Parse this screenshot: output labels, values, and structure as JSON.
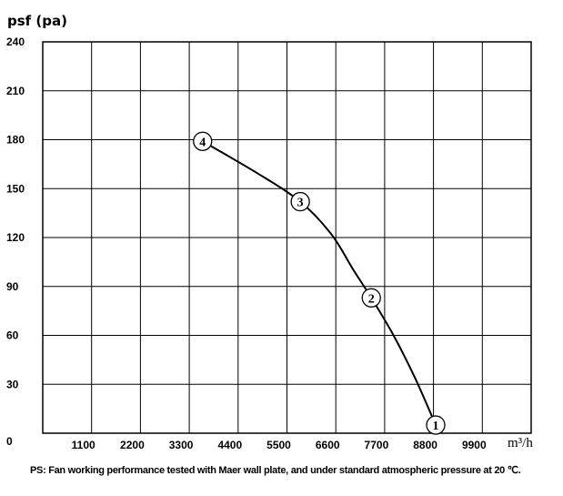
{
  "chart_data": {
    "type": "line",
    "title": "",
    "ylabel": "psf (pa)",
    "xlabel": "m³/h",
    "xlim": [
      0,
      11000
    ],
    "ylim": [
      0,
      240
    ],
    "xticks": [
      1100,
      2200,
      3300,
      4400,
      5500,
      6600,
      7700,
      8800,
      9900
    ],
    "yticks": [
      0,
      30,
      60,
      90,
      120,
      150,
      180,
      210,
      240
    ],
    "xtick_labels": [
      "1100",
      "2200",
      "3300",
      "4400",
      "5500",
      "6600",
      "7700",
      "8800",
      "9900"
    ],
    "ytick_labels": [
      "0",
      "30",
      "60",
      "90",
      "120",
      "150",
      "180",
      "210",
      "240"
    ],
    "grid": true,
    "series": [
      {
        "x": [
          3600,
          4800,
          5800,
          6500,
          7000,
          7400,
          7900,
          8400,
          8850
        ],
        "y": [
          179,
          160,
          142,
          122,
          100,
          83,
          60,
          33,
          5
        ]
      }
    ],
    "markers": [
      {
        "label": "4",
        "x": 3600,
        "y": 179
      },
      {
        "label": "3",
        "x": 5800,
        "y": 142
      },
      {
        "label": "2",
        "x": 7400,
        "y": 83
      },
      {
        "label": "1",
        "x": 8850,
        "y": 5
      }
    ],
    "colors": {
      "line": "#000000",
      "grid": "#000000",
      "background": "#ffffff"
    }
  },
  "footnote": "PS: Fan working performance tested with Maer wall plate, and under standard atmospheric pressure at 20 ℃."
}
